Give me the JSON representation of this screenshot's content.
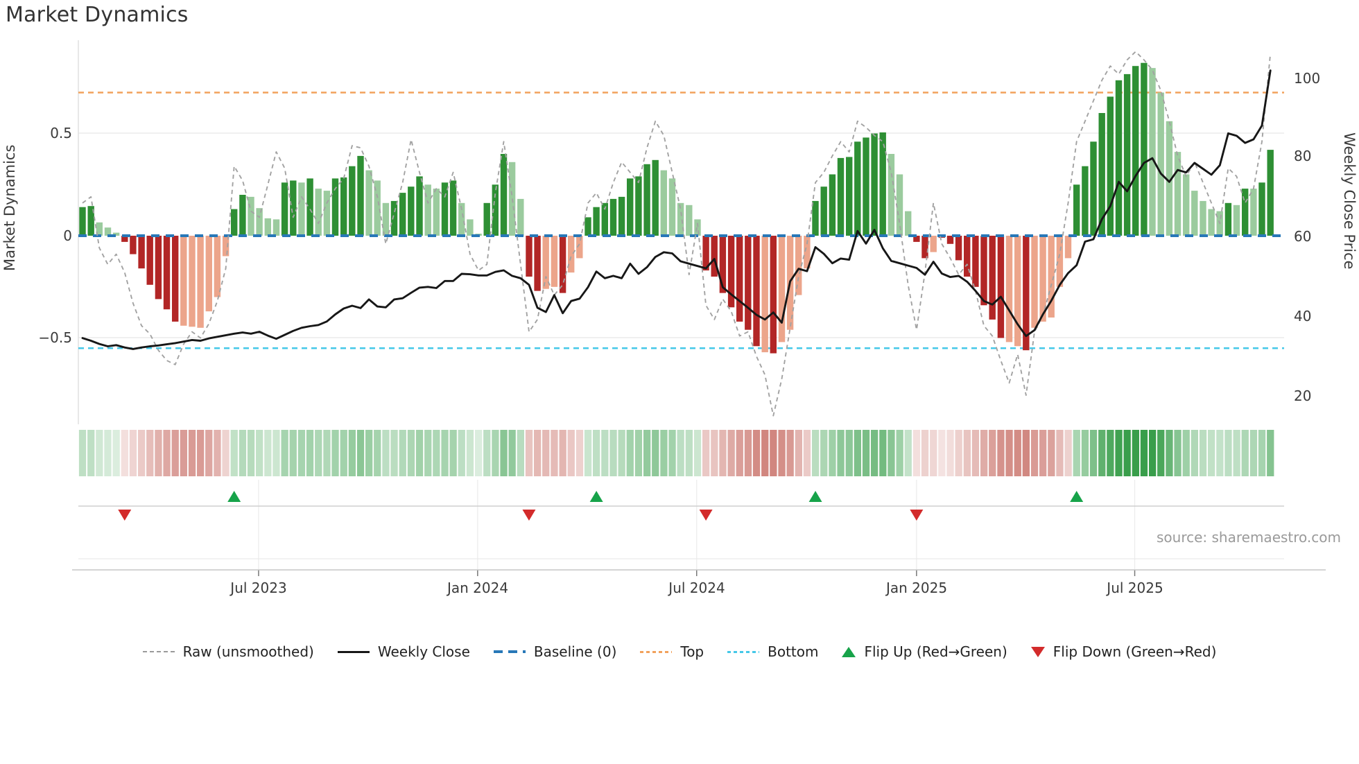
{
  "title": "Market Dynamics",
  "y_axis_left": {
    "label": "Market Dynamics",
    "ticks": [
      {
        "text": "0.5",
        "y": 192
      },
      {
        "text": "0",
        "y": 340
      },
      {
        "text": "−0.5",
        "y": 487
      }
    ]
  },
  "y_axis_right": {
    "label": "Weekly Close Price",
    "ticks": [
      {
        "text": "100",
        "y": 113
      },
      {
        "text": "80",
        "y": 225
      },
      {
        "text": "60",
        "y": 341
      },
      {
        "text": "40",
        "y": 456
      },
      {
        "text": "20",
        "y": 571
      }
    ]
  },
  "source": "source: sharemaestro.com",
  "legend": [
    {
      "label": "Raw (unsmoothed)",
      "type": "dash-gray"
    },
    {
      "label": "Weekly Close",
      "type": "solid-black"
    },
    {
      "label": "Baseline (0)",
      "type": "longdash-blue"
    },
    {
      "label": "Top",
      "type": "dot-orange"
    },
    {
      "label": "Bottom",
      "type": "dot-cyan"
    },
    {
      "label": "Flip Up (Red→Green)",
      "type": "tri-up"
    },
    {
      "label": "Flip Down (Green→Red)",
      "type": "tri-down"
    }
  ],
  "chart_data": {
    "type": "composite",
    "subtype": "weekly oscillator bars + heatmap strip + flip markers + price line",
    "start_date": "2023-02-05",
    "interval_days": 7,
    "n_weeks": 142,
    "x_ticks": [
      {
        "label": "Jul 2023",
        "week": 20.9
      },
      {
        "label": "Jan 2024",
        "week": 46.9
      },
      {
        "label": "Jul 2024",
        "week": 72.9
      },
      {
        "label": "Jan 2025",
        "week": 99.0
      },
      {
        "label": "Jul 2025",
        "week": 124.9
      }
    ],
    "ylim_left": [
      -0.8,
      0.95
    ],
    "ylim_right": [
      20,
      105
    ],
    "reference_lines": {
      "baseline": 0.0,
      "top": 0.7,
      "bottom": -0.55
    },
    "flips": [
      {
        "week": 5,
        "dir": "down"
      },
      {
        "week": 18,
        "dir": "up"
      },
      {
        "week": 53,
        "dir": "down"
      },
      {
        "week": 61,
        "dir": "up"
      },
      {
        "week": 74,
        "dir": "down"
      },
      {
        "week": 87,
        "dir": "up"
      },
      {
        "week": 99,
        "dir": "down"
      },
      {
        "week": 118,
        "dir": "up"
      }
    ],
    "series": [
      {
        "name": "Market Dynamics (smoothed bars)",
        "type": "bar",
        "axis": "left",
        "values": [
          0.14,
          0.145,
          0.065,
          0.04,
          0.015,
          -0.03,
          -0.09,
          -0.16,
          -0.24,
          -0.31,
          -0.36,
          -0.42,
          -0.44,
          -0.445,
          -0.45,
          -0.37,
          -0.3,
          -0.1,
          0.13,
          0.2,
          0.19,
          0.135,
          0.085,
          0.08,
          0.26,
          0.27,
          0.26,
          0.28,
          0.23,
          0.22,
          0.28,
          0.285,
          0.34,
          0.39,
          0.32,
          0.27,
          0.16,
          0.17,
          0.21,
          0.24,
          0.29,
          0.25,
          0.23,
          0.26,
          0.27,
          0.16,
          0.08,
          0.01,
          0.16,
          0.25,
          0.4,
          0.36,
          0.18,
          -0.2,
          -0.27,
          -0.26,
          -0.25,
          -0.28,
          -0.18,
          -0.11,
          0.09,
          0.14,
          0.16,
          0.18,
          0.19,
          0.28,
          0.29,
          0.35,
          0.37,
          0.32,
          0.28,
          0.16,
          0.15,
          0.08,
          -0.17,
          -0.2,
          -0.28,
          -0.35,
          -0.42,
          -0.46,
          -0.54,
          -0.57,
          -0.575,
          -0.52,
          -0.46,
          -0.29,
          -0.16,
          0.17,
          0.24,
          0.3,
          0.38,
          0.385,
          0.46,
          0.48,
          0.5,
          0.505,
          0.4,
          0.3,
          0.12,
          -0.03,
          -0.11,
          -0.08,
          -0.01,
          -0.04,
          -0.12,
          -0.2,
          -0.25,
          -0.34,
          -0.41,
          -0.5,
          -0.52,
          -0.54,
          -0.56,
          -0.45,
          -0.42,
          -0.4,
          -0.25,
          -0.11,
          0.25,
          0.34,
          0.46,
          0.6,
          0.68,
          0.76,
          0.79,
          0.83,
          0.845,
          0.82,
          0.7,
          0.56,
          0.41,
          0.3,
          0.22,
          0.17,
          0.13,
          0.12,
          0.16,
          0.15,
          0.23,
          0.23,
          0.26,
          0.42
        ],
        "shades": [
          "dg",
          "dg",
          "lg",
          "lg",
          "lg",
          "dr",
          "dr",
          "dr",
          "dr",
          "dr",
          "dr",
          "dr",
          "lr",
          "lr",
          "lr",
          "lr",
          "lr",
          "lr",
          "dg",
          "dg",
          "lg",
          "lg",
          "lg",
          "lg",
          "dg",
          "dg",
          "lg",
          "dg",
          "lg",
          "lg",
          "dg",
          "dg",
          "dg",
          "dg",
          "lg",
          "lg",
          "lg",
          "dg",
          "dg",
          "dg",
          "dg",
          "lg",
          "lg",
          "dg",
          "dg",
          "lg",
          "lg",
          "lg",
          "dg",
          "dg",
          "dg",
          "lg",
          "lg",
          "dr",
          "dr",
          "lr",
          "lr",
          "dr",
          "lr",
          "lr",
          "dg",
          "dg",
          "dg",
          "dg",
          "dg",
          "dg",
          "dg",
          "dg",
          "dg",
          "lg",
          "lg",
          "lg",
          "lg",
          "lg",
          "dr",
          "dr",
          "dr",
          "dr",
          "dr",
          "dr",
          "dr",
          "lr",
          "dr",
          "lr",
          "lr",
          "lr",
          "lr",
          "dg",
          "dg",
          "dg",
          "dg",
          "dg",
          "dg",
          "dg",
          "dg",
          "dg",
          "lg",
          "lg",
          "lg",
          "dr",
          "dr",
          "lr",
          "dr",
          "dr",
          "dr",
          "dr",
          "dr",
          "dr",
          "dr",
          "dr",
          "lr",
          "lr",
          "dr",
          "lr",
          "lr",
          "lr",
          "lr",
          "lr",
          "dg",
          "dg",
          "dg",
          "dg",
          "dg",
          "dg",
          "dg",
          "dg",
          "dg",
          "lg",
          "lg",
          "lg",
          "lg",
          "lg",
          "lg",
          "lg",
          "lg",
          "lg",
          "dg",
          "lg",
          "dg",
          "lg",
          "dg",
          "dg"
        ]
      },
      {
        "name": "Raw (unsmoothed)",
        "type": "line",
        "axis": "left",
        "values": [
          0.16,
          0.19,
          -0.06,
          -0.14,
          -0.09,
          -0.18,
          -0.33,
          -0.44,
          -0.48,
          -0.56,
          -0.61,
          -0.63,
          -0.53,
          -0.47,
          -0.5,
          -0.43,
          -0.32,
          -0.16,
          0.34,
          0.27,
          0.12,
          0.09,
          0.25,
          0.41,
          0.33,
          0.09,
          0.19,
          0.13,
          0.06,
          0.16,
          0.23,
          0.28,
          0.44,
          0.43,
          0.34,
          0.19,
          -0.04,
          0.11,
          0.26,
          0.47,
          0.31,
          0.16,
          0.23,
          0.19,
          0.31,
          0.13,
          -0.09,
          -0.17,
          -0.14,
          0.21,
          0.46,
          0.19,
          -0.14,
          -0.47,
          -0.41,
          -0.2,
          -0.29,
          -0.24,
          -0.1,
          -0.04,
          0.16,
          0.21,
          0.13,
          0.26,
          0.36,
          0.31,
          0.26,
          0.43,
          0.56,
          0.49,
          0.31,
          0.13,
          -0.19,
          0.06,
          -0.34,
          -0.41,
          -0.31,
          -0.37,
          -0.49,
          -0.47,
          -0.59,
          -0.68,
          -0.88,
          -0.7,
          -0.45,
          -0.2,
          -0.04,
          0.26,
          0.31,
          0.39,
          0.46,
          0.41,
          0.56,
          0.53,
          0.49,
          0.46,
          0.31,
          0.06,
          -0.24,
          -0.46,
          -0.18,
          0.16,
          -0.04,
          -0.11,
          -0.19,
          -0.14,
          -0.27,
          -0.44,
          -0.49,
          -0.61,
          -0.72,
          -0.58,
          -0.78,
          -0.47,
          -0.39,
          -0.24,
          -0.09,
          0.16,
          0.46,
          0.56,
          0.66,
          0.76,
          0.83,
          0.79,
          0.86,
          0.9,
          0.86,
          0.81,
          0.71,
          0.56,
          0.39,
          0.29,
          0.36,
          0.26,
          0.16,
          0.06,
          0.33,
          0.29,
          0.16,
          0.23,
          0.46,
          0.89
        ]
      },
      {
        "name": "Weekly Close",
        "type": "line",
        "axis": "right",
        "values": [
          34.0,
          33.3,
          32.5,
          31.9,
          32.2,
          31.6,
          31.2,
          31.6,
          31.9,
          32.1,
          32.4,
          32.7,
          33.1,
          33.5,
          33.3,
          33.9,
          34.3,
          34.7,
          35.1,
          35.4,
          35.1,
          35.6,
          34.6,
          33.8,
          34.8,
          35.8,
          36.6,
          37.0,
          37.3,
          38.2,
          40.0,
          41.5,
          42.2,
          41.6,
          43.8,
          42.0,
          41.8,
          43.8,
          44.1,
          45.5,
          46.8,
          47.0,
          46.7,
          48.5,
          48.5,
          50.3,
          50.2,
          49.9,
          49.9,
          50.8,
          51.2,
          49.8,
          49.2,
          47.5,
          41.7,
          40.6,
          44.9,
          40.3,
          43.4,
          44.0,
          46.9,
          50.9,
          49.2,
          49.8,
          49.2,
          52.9,
          50.3,
          52.0,
          54.6,
          55.8,
          55.5,
          53.5,
          52.9,
          52.3,
          51.7,
          54.1,
          46.9,
          45.1,
          43.4,
          41.7,
          39.9,
          38.7,
          40.5,
          37.9,
          48.4,
          51.6,
          51.0,
          57.1,
          55.4,
          53.0,
          54.2,
          53.9,
          61.2,
          58.0,
          61.5,
          56.8,
          53.6,
          53.0,
          52.4,
          51.8,
          50.1,
          53.4,
          50.4,
          49.5,
          49.8,
          48.3,
          46.0,
          43.4,
          42.5,
          44.5,
          41.0,
          37.5,
          34.5,
          36.0,
          40.0,
          43.5,
          47.5,
          50.5,
          52.5,
          58.5,
          59.1,
          64.2,
          67.5,
          73.7,
          71.3,
          75.2,
          78.5,
          79.7,
          75.8,
          73.7,
          76.7,
          76.1,
          78.5,
          77.0,
          75.5,
          77.9,
          86.0,
          85.4,
          83.6,
          84.5,
          88.0,
          102.0
        ]
      }
    ],
    "heatmap": {
      "note": "strip mirrors bar values as green/red intensity",
      "source_series": 0
    },
    "colors": {
      "bar_dark_green": "#2e8f34",
      "bar_light_green": "#9bcb9e",
      "bar_dark_red": "#b22626",
      "bar_light_red": "#eca58b",
      "baseline_blue": "#2878b8",
      "top_orange": "#f2a25c",
      "bottom_cyan": "#45c8e8",
      "raw_gray": "#a2a2a2",
      "price_black": "#171717",
      "flip_up_green": "#17a34a",
      "flip_down_red": "#d32b2b",
      "heat_green": [
        40,
        150,
        60
      ],
      "heat_red": [
        190,
        85,
        75
      ]
    }
  }
}
